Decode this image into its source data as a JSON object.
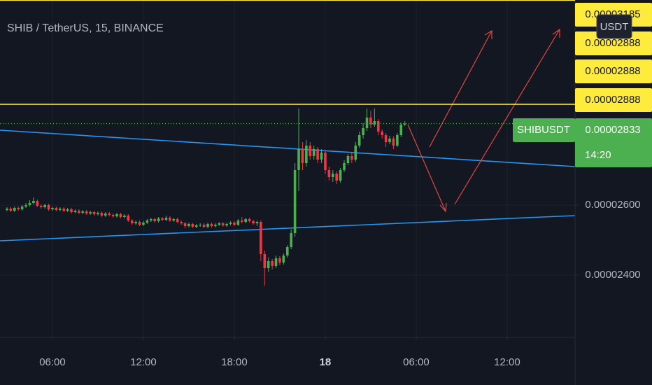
{
  "chart_data": {
    "type": "candlestick",
    "title": "SHIB / TetherUS, 15, BINANCE",
    "currency_button": "USDT",
    "up_color": "#4caf50",
    "down_color": "#f23645",
    "grid": true,
    "xlim": [
      2.54,
      40.48
    ],
    "xticks": [
      {
        "value": 6,
        "label": "06:00"
      },
      {
        "value": 12,
        "label": "12:00"
      },
      {
        "value": 18,
        "label": "18:00"
      },
      {
        "value": 24,
        "label": "18"
      },
      {
        "value": 30,
        "label": "06:00"
      },
      {
        "value": 36,
        "label": "12:00"
      }
    ],
    "ylim": [
      2.222e-05,
      3.186e-05
    ],
    "yticks": [
      {
        "value": 2.4e-05,
        "label": "0.00002400"
      },
      {
        "value": 2.6e-05,
        "label": "0.00002600"
      }
    ],
    "price_lines": [
      3.185e-05,
      2.888e-05,
      2.888e-05,
      2.888e-05
    ],
    "price_line_color": "#ffeb3b",
    "last_price": {
      "symbol": "SHIBUSDT",
      "value": 2.833e-05,
      "countdown": "14:20",
      "color": "#4caf50"
    },
    "x": [
      3,
      3.25,
      3.5,
      3.75,
      4,
      4.25,
      4.5,
      4.75,
      5,
      5.25,
      5.5,
      5.75,
      6,
      6.25,
      6.5,
      6.75,
      7,
      7.25,
      7.5,
      7.75,
      8,
      8.25,
      8.5,
      8.75,
      9,
      9.25,
      9.5,
      9.75,
      10,
      10.25,
      10.5,
      10.75,
      11,
      11.25,
      11.5,
      11.75,
      12,
      12.25,
      12.5,
      12.75,
      13,
      13.25,
      13.5,
      13.75,
      14,
      14.25,
      14.5,
      14.75,
      15,
      15.25,
      15.5,
      15.75,
      16,
      16.25,
      16.5,
      16.75,
      17,
      17.25,
      17.5,
      17.75,
      18,
      18.25,
      18.5,
      18.75,
      19,
      19.25,
      19.5,
      19.75,
      20,
      20.25,
      20.5,
      20.75,
      21,
      21.25,
      21.5,
      21.75,
      22,
      22.25,
      22.5,
      22.75,
      23,
      23.25,
      23.5,
      23.75,
      24,
      24.25,
      24.5,
      24.75,
      25,
      25.25,
      25.5,
      25.75,
      26,
      26.25,
      26.5,
      26.75,
      27,
      27.25,
      27.5,
      27.75,
      28,
      28.25,
      28.5,
      28.75,
      29,
      29.25
    ],
    "open": [
      2.586e-05,
      2.59e-05,
      2.584e-05,
      2.592e-05,
      2.588e-05,
      2.596e-05,
      2.6e-05,
      2.606e-05,
      2.612e-05,
      2.598e-05,
      2.594e-05,
      2.6e-05,
      2.588e-05,
      2.592e-05,
      2.586e-05,
      2.59e-05,
      2.584e-05,
      2.588e-05,
      2.58e-05,
      2.584e-05,
      2.578e-05,
      2.582e-05,
      2.576e-05,
      2.58e-05,
      2.574e-05,
      2.578e-05,
      2.57e-05,
      2.576e-05,
      2.572e-05,
      2.568e-05,
      2.574e-05,
      2.566e-05,
      2.57e-05,
      2.556e-05,
      2.548e-05,
      2.552e-05,
      2.544e-05,
      2.55e-05,
      2.556e-05,
      2.56e-05,
      2.554e-05,
      2.562e-05,
      2.558e-05,
      2.564e-05,
      2.556e-05,
      2.56e-05,
      2.552e-05,
      2.548e-05,
      2.54e-05,
      2.546e-05,
      2.538e-05,
      2.542e-05,
      2.544e-05,
      2.538e-05,
      2.546e-05,
      2.54e-05,
      2.544e-05,
      2.548e-05,
      2.542e-05,
      2.546e-05,
      2.55e-05,
      2.544e-05,
      2.556e-05,
      2.552e-05,
      2.56e-05,
      2.554e-05,
      2.548e-05,
      2.552e-05,
      2.46e-05,
      2.42e-05,
      2.44e-05,
      2.426e-05,
      2.448e-05,
      2.436e-05,
      2.456e-05,
      2.48e-05,
      2.52e-05,
      2.7e-05,
      2.76e-05,
      2.72e-05,
      2.77e-05,
      2.74e-05,
      2.76e-05,
      2.73e-05,
      2.75e-05,
      2.7e-05,
      2.68e-05,
      2.69e-05,
      2.67e-05,
      2.7e-05,
      2.72e-05,
      2.74e-05,
      2.73e-05,
      2.77e-05,
      2.8e-05,
      2.82e-05,
      2.85e-05,
      2.83e-05,
      2.84e-05,
      2.81e-05,
      2.8e-05,
      2.78e-05,
      2.79e-05,
      2.77e-05,
      2.8e-05,
      2.83e-05
    ],
    "high": [
      2.594e-05,
      2.594e-05,
      2.596e-05,
      2.596e-05,
      2.6e-05,
      2.606e-05,
      2.614e-05,
      2.622e-05,
      2.616e-05,
      2.602e-05,
      2.604e-05,
      2.604e-05,
      2.596e-05,
      2.596e-05,
      2.594e-05,
      2.594e-05,
      2.592e-05,
      2.592e-05,
      2.588e-05,
      2.588e-05,
      2.586e-05,
      2.586e-05,
      2.584e-05,
      2.584e-05,
      2.582e-05,
      2.582e-05,
      2.58e-05,
      2.58e-05,
      2.576e-05,
      2.578e-05,
      2.578e-05,
      2.574e-05,
      2.574e-05,
      2.56e-05,
      2.556e-05,
      2.556e-05,
      2.554e-05,
      2.56e-05,
      2.564e-05,
      2.564e-05,
      2.566e-05,
      2.566e-05,
      2.57e-05,
      2.568e-05,
      2.564e-05,
      2.564e-05,
      2.556e-05,
      2.552e-05,
      2.55e-05,
      2.55e-05,
      2.546e-05,
      2.548e-05,
      2.548e-05,
      2.55e-05,
      2.55e-05,
      2.548e-05,
      2.552e-05,
      2.552e-05,
      2.55e-05,
      2.554e-05,
      2.554e-05,
      2.56e-05,
      2.566e-05,
      2.564e-05,
      2.564e-05,
      2.558e-05,
      2.556e-05,
      2.556e-05,
      2.47e-05,
      2.45e-05,
      2.446e-05,
      2.456e-05,
      2.454e-05,
      2.462e-05,
      2.486e-05,
      2.53e-05,
      2.72e-05,
      2.876e-05,
      2.78e-05,
      2.786e-05,
      2.78e-05,
      2.77e-05,
      2.766e-05,
      2.76e-05,
      2.756e-05,
      2.71e-05,
      2.7e-05,
      2.696e-05,
      2.706e-05,
      2.728e-05,
      2.746e-05,
      2.75e-05,
      2.78e-05,
      2.81e-05,
      2.834e-05,
      2.876e-05,
      2.87e-05,
      2.876e-05,
      2.846e-05,
      2.816e-05,
      2.806e-05,
      2.798e-05,
      2.796e-05,
      2.806e-05,
      2.836e-05,
      2.84e-05
    ],
    "low": [
      2.582e-05,
      2.58e-05,
      2.58e-05,
      2.584e-05,
      2.584e-05,
      2.592e-05,
      2.596e-05,
      2.602e-05,
      2.594e-05,
      2.59e-05,
      2.59e-05,
      2.584e-05,
      2.584e-05,
      2.582e-05,
      2.582e-05,
      2.58e-05,
      2.58e-05,
      2.576e-05,
      2.576e-05,
      2.574e-05,
      2.574e-05,
      2.572e-05,
      2.572e-05,
      2.57e-05,
      2.57e-05,
      2.566e-05,
      2.566e-05,
      2.568e-05,
      2.564e-05,
      2.564e-05,
      2.562e-05,
      2.562e-05,
      2.552e-05,
      2.544e-05,
      2.544e-05,
      2.54e-05,
      2.54e-05,
      2.546e-05,
      2.552e-05,
      2.55e-05,
      2.55e-05,
      2.554e-05,
      2.554e-05,
      2.552e-05,
      2.552e-05,
      2.548e-05,
      2.544e-05,
      2.534e-05,
      2.536e-05,
      2.534e-05,
      2.534e-05,
      2.538e-05,
      2.534e-05,
      2.534e-05,
      2.536e-05,
      2.536e-05,
      2.54e-05,
      2.538e-05,
      2.538e-05,
      2.542e-05,
      2.54e-05,
      2.54e-05,
      2.548e-05,
      2.548e-05,
      2.55e-05,
      2.544e-05,
      2.54e-05,
      2.44e-05,
      2.37e-05,
      2.41e-05,
      2.416e-05,
      2.42e-05,
      2.428e-05,
      2.43e-05,
      2.45e-05,
      2.474e-05,
      2.51e-05,
      2.64e-05,
      2.7e-05,
      2.71e-05,
      2.73e-05,
      2.73e-05,
      2.72e-05,
      2.72e-05,
      2.69e-05,
      2.67e-05,
      2.666e-05,
      2.66e-05,
      2.664e-05,
      2.694e-05,
      2.714e-05,
      2.72e-05,
      2.724e-05,
      2.764e-05,
      2.79e-05,
      2.812e-05,
      2.82e-05,
      2.824e-05,
      2.8e-05,
      2.79e-05,
      2.766e-05,
      2.774e-05,
      2.76e-05,
      2.766e-05,
      2.794e-05,
      2.826e-05
    ],
    "close": [
      2.59e-05,
      2.584e-05,
      2.592e-05,
      2.588e-05,
      2.596e-05,
      2.6e-05,
      2.606e-05,
      2.612e-05,
      2.598e-05,
      2.594e-05,
      2.6e-05,
      2.588e-05,
      2.592e-05,
      2.586e-05,
      2.59e-05,
      2.584e-05,
      2.588e-05,
      2.58e-05,
      2.584e-05,
      2.578e-05,
      2.582e-05,
      2.576e-05,
      2.58e-05,
      2.574e-05,
      2.578e-05,
      2.57e-05,
      2.576e-05,
      2.572e-05,
      2.568e-05,
      2.574e-05,
      2.566e-05,
      2.57e-05,
      2.556e-05,
      2.548e-05,
      2.552e-05,
      2.544e-05,
      2.55e-05,
      2.556e-05,
      2.56e-05,
      2.554e-05,
      2.562e-05,
      2.558e-05,
      2.564e-05,
      2.556e-05,
      2.56e-05,
      2.552e-05,
      2.548e-05,
      2.54e-05,
      2.546e-05,
      2.538e-05,
      2.542e-05,
      2.544e-05,
      2.538e-05,
      2.546e-05,
      2.54e-05,
      2.544e-05,
      2.548e-05,
      2.542e-05,
      2.546e-05,
      2.55e-05,
      2.544e-05,
      2.556e-05,
      2.552e-05,
      2.56e-05,
      2.554e-05,
      2.548e-05,
      2.552e-05,
      2.46e-05,
      2.42e-05,
      2.44e-05,
      2.426e-05,
      2.448e-05,
      2.436e-05,
      2.456e-05,
      2.48e-05,
      2.52e-05,
      2.7e-05,
      2.76e-05,
      2.72e-05,
      2.77e-05,
      2.74e-05,
      2.76e-05,
      2.73e-05,
      2.75e-05,
      2.7e-05,
      2.68e-05,
      2.69e-05,
      2.67e-05,
      2.7e-05,
      2.72e-05,
      2.74e-05,
      2.73e-05,
      2.77e-05,
      2.8e-05,
      2.82e-05,
      2.85e-05,
      2.83e-05,
      2.84e-05,
      2.81e-05,
      2.8e-05,
      2.78e-05,
      2.79e-05,
      2.77e-05,
      2.8e-05,
      2.83e-05,
      2.833e-05
    ]
  }
}
